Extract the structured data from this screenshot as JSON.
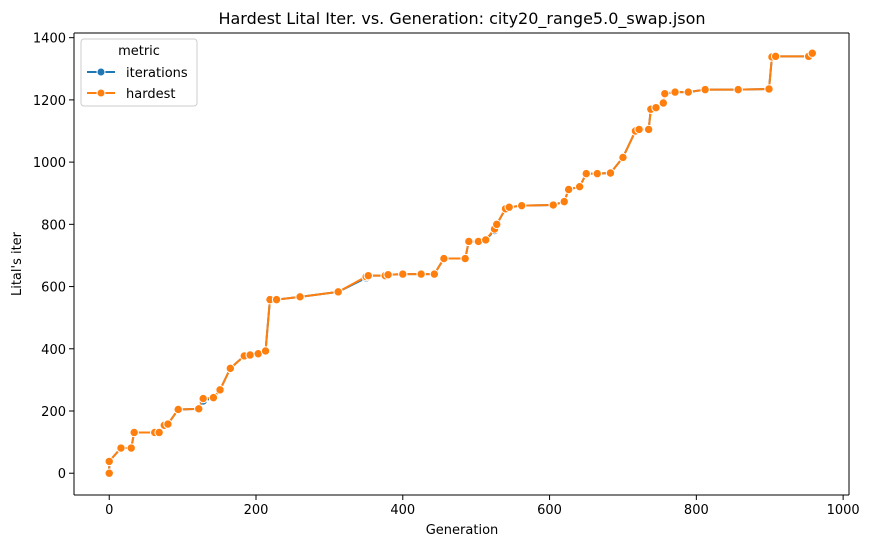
{
  "chart_data": {
    "type": "line",
    "title": "Hardest Lital Iter. vs. Generation: city20_range5.0_swap.json",
    "xlabel": "Generation",
    "ylabel": "Lital's iter",
    "xlim": [
      -48,
      1008
    ],
    "ylim": [
      -70,
      1415
    ],
    "xticks": [
      0,
      200,
      400,
      600,
      800,
      1000
    ],
    "yticks": [
      0,
      200,
      400,
      600,
      800,
      1000,
      1200,
      1400
    ],
    "grid": false,
    "legend": {
      "title": "metric",
      "placement": "top-left"
    },
    "series": [
      {
        "name": "iterations",
        "color": "#1f77b4",
        "x": [
          0,
          0,
          16,
          30,
          34,
          62,
          68,
          75,
          80,
          94,
          122,
          128,
          142,
          151,
          165,
          184,
          192,
          203,
          213,
          219,
          228,
          260,
          312,
          350,
          353,
          376,
          380,
          400,
          425,
          443,
          456,
          485,
          490,
          503,
          513,
          525,
          528,
          540,
          545,
          562,
          605,
          620,
          626,
          641,
          650,
          665,
          683,
          700,
          717,
          722,
          735,
          738,
          745,
          755,
          757,
          771,
          789,
          812,
          857,
          899,
          903,
          908,
          953,
          958
        ],
        "y": [
          0,
          38,
          81,
          81,
          131,
          131,
          131,
          154,
          158,
          205,
          207,
          232,
          243,
          268,
          337,
          377,
          380,
          384,
          393,
          558,
          558,
          567,
          583,
          628,
          635,
          635,
          638,
          640,
          640,
          640,
          690,
          690,
          745,
          745,
          750,
          780,
          800,
          850,
          855,
          860,
          862,
          873,
          912,
          921,
          963,
          963,
          965,
          1015,
          1100,
          1105,
          1105,
          1170,
          1175,
          1190,
          1220,
          1225,
          1225,
          1233,
          1233,
          1235,
          1338,
          1340,
          1340,
          1350
        ]
      },
      {
        "name": "hardest",
        "color": "#ff7f0e",
        "x": [
          0,
          0,
          16,
          30,
          34,
          62,
          68,
          75,
          80,
          94,
          122,
          128,
          142,
          151,
          165,
          184,
          192,
          203,
          213,
          219,
          228,
          260,
          312,
          350,
          353,
          376,
          380,
          400,
          425,
          443,
          456,
          485,
          490,
          503,
          513,
          525,
          528,
          540,
          545,
          562,
          605,
          620,
          626,
          641,
          650,
          665,
          683,
          700,
          717,
          722,
          735,
          738,
          745,
          755,
          757,
          771,
          789,
          812,
          857,
          899,
          903,
          908,
          953,
          958
        ],
        "y": [
          0,
          38,
          81,
          81,
          131,
          131,
          131,
          154,
          158,
          205,
          207,
          240,
          243,
          268,
          337,
          377,
          380,
          384,
          393,
          558,
          558,
          567,
          583,
          632,
          635,
          635,
          638,
          640,
          640,
          640,
          690,
          690,
          745,
          745,
          750,
          785,
          800,
          850,
          855,
          860,
          862,
          873,
          912,
          921,
          963,
          963,
          965,
          1015,
          1100,
          1105,
          1105,
          1170,
          1175,
          1190,
          1220,
          1225,
          1225,
          1233,
          1233,
          1235,
          1338,
          1340,
          1340,
          1350
        ]
      }
    ]
  }
}
